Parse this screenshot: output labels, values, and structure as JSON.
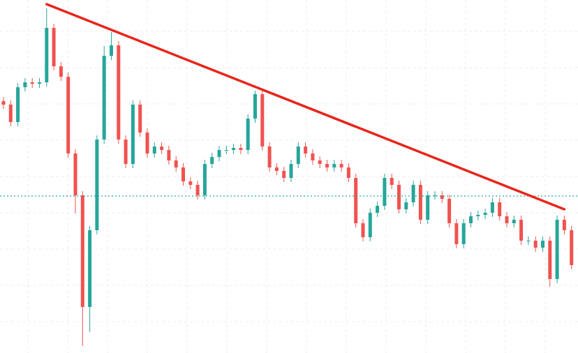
{
  "chart_data": {
    "type": "candlestick",
    "open": [
      361,
      356,
      331,
      381,
      388,
      386,
      388,
      466,
      411,
      396,
      286,
      226,
      66,
      176,
      306,
      426,
      441,
      306,
      271,
      356,
      316,
      286,
      296,
      291,
      276,
      266,
      246,
      241,
      226,
      271,
      281,
      291,
      291,
      294,
      291,
      336,
      371,
      296,
      266,
      261,
      251,
      271,
      296,
      286,
      276,
      271,
      266,
      271,
      266,
      251,
      186,
      166,
      201,
      211,
      251,
      241,
      206,
      216,
      241,
      191,
      226,
      226,
      221,
      186,
      156,
      186,
      196,
      198,
      201,
      216,
      196,
      186,
      191,
      161,
      161,
      151,
      161,
      106,
      191,
      176
    ],
    "high": [
      367,
      362,
      387,
      394,
      394,
      394,
      494,
      472,
      417,
      402,
      292,
      232,
      182,
      312,
      440,
      460,
      447,
      312,
      362,
      362,
      322,
      302,
      302,
      297,
      282,
      272,
      252,
      247,
      277,
      287,
      297,
      297,
      300,
      300,
      342,
      376,
      377,
      302,
      272,
      267,
      277,
      302,
      302,
      292,
      282,
      277,
      277,
      277,
      272,
      257,
      192,
      207,
      217,
      257,
      257,
      247,
      222,
      247,
      247,
      232,
      232,
      232,
      227,
      192,
      192,
      202,
      204,
      207,
      222,
      222,
      202,
      197,
      197,
      167,
      167,
      167,
      167,
      197,
      197,
      182
    ],
    "low": [
      350,
      325,
      325,
      375,
      380,
      380,
      382,
      405,
      390,
      280,
      200,
      10,
      30,
      170,
      300,
      420,
      300,
      265,
      265,
      310,
      280,
      280,
      285,
      270,
      260,
      240,
      235,
      220,
      220,
      265,
      275,
      285,
      285,
      285,
      285,
      330,
      290,
      260,
      255,
      245,
      245,
      265,
      280,
      270,
      265,
      260,
      260,
      260,
      245,
      180,
      160,
      160,
      195,
      205,
      235,
      200,
      200,
      210,
      185,
      185,
      220,
      215,
      180,
      150,
      150,
      180,
      190,
      192,
      195,
      190,
      180,
      180,
      155,
      155,
      145,
      145,
      95,
      100,
      170,
      120
    ],
    "close": [
      356,
      331,
      381,
      388,
      386,
      388,
      466,
      411,
      396,
      286,
      226,
      66,
      176,
      306,
      426,
      441,
      306,
      271,
      356,
      316,
      286,
      296,
      291,
      276,
      266,
      246,
      241,
      226,
      271,
      281,
      291,
      291,
      294,
      291,
      336,
      371,
      296,
      266,
      261,
      251,
      271,
      296,
      286,
      276,
      271,
      266,
      271,
      266,
      251,
      186,
      166,
      201,
      211,
      251,
      241,
      206,
      216,
      241,
      191,
      226,
      226,
      221,
      186,
      156,
      186,
      196,
      198,
      201,
      216,
      196,
      186,
      191,
      161,
      161,
      151,
      161,
      106,
      191,
      176,
      126
    ],
    "up_color": "#26a69a",
    "down_color": "#ef5350",
    "ylim": [
      0,
      506
    ],
    "trendline": {
      "x": [
        6,
        78
      ],
      "y": [
        500,
        206
      ],
      "color": "#e8251b"
    },
    "price_line": {
      "value": 225,
      "color": "#26a69a"
    },
    "grid": true
  }
}
